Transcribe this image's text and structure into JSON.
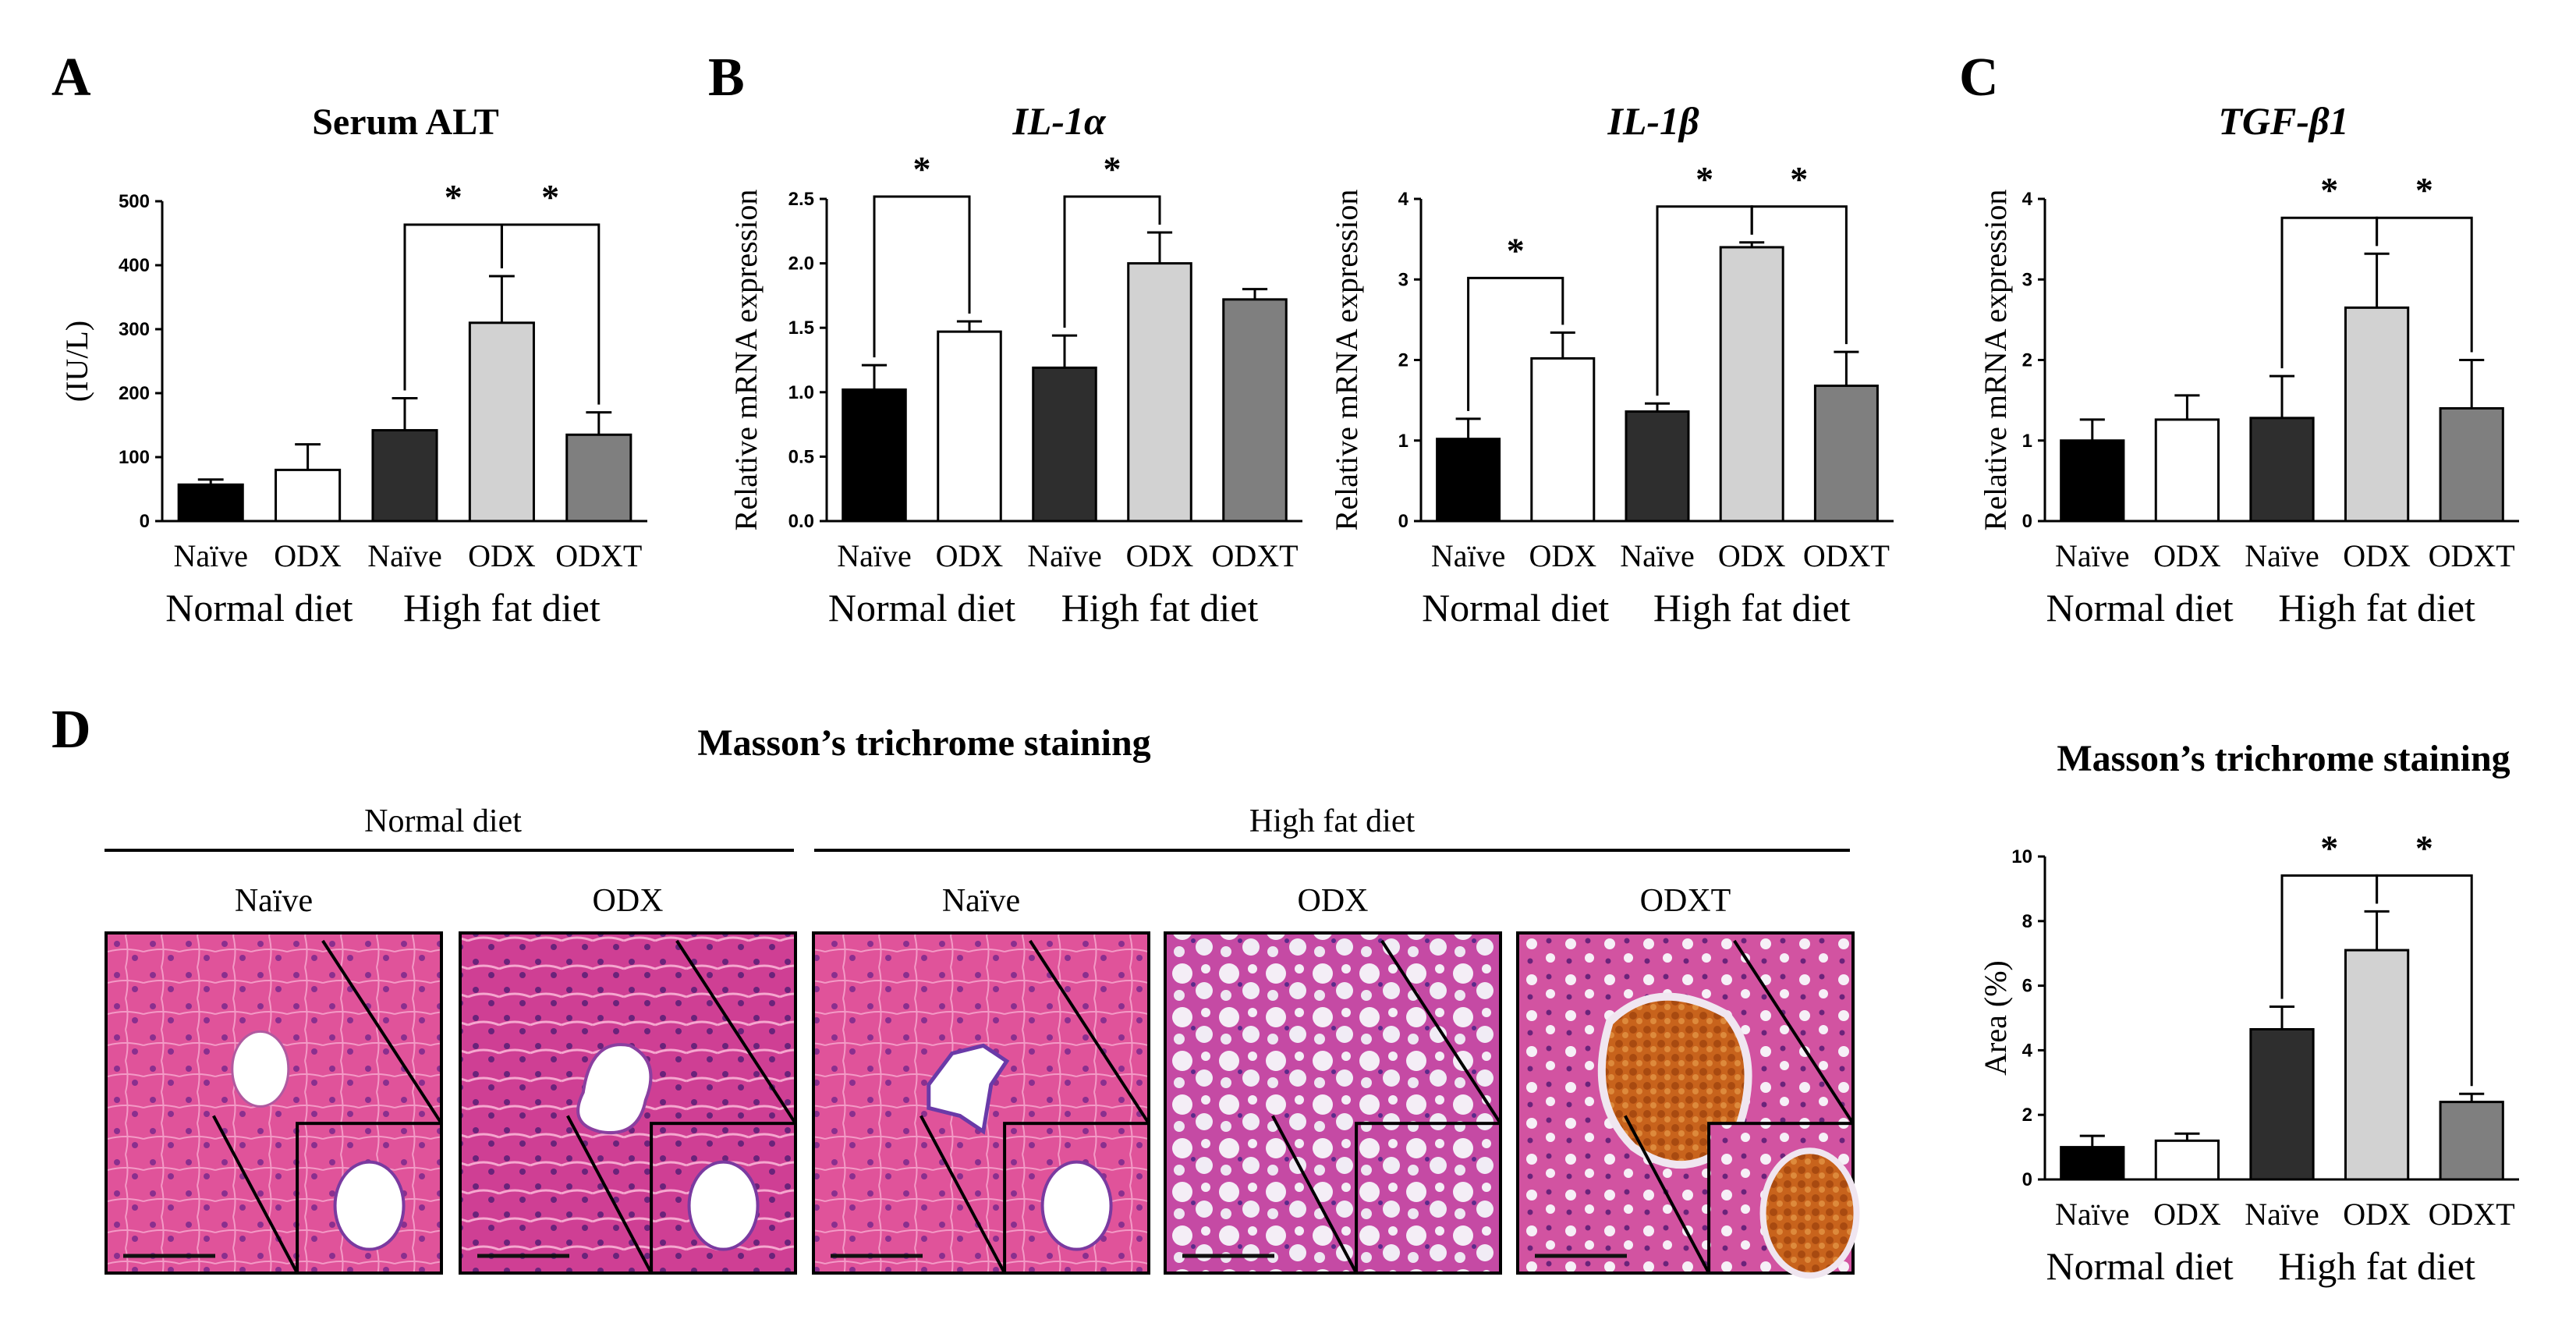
{
  "figure": {
    "panels": {
      "A": "A",
      "B": "B",
      "C": "C",
      "D": "D"
    },
    "d_title": "Masson’s trichrome staining",
    "d_groups": [
      "Normal diet",
      "High fat diet"
    ],
    "d_image_labels": [
      "Naïve",
      "ODX",
      "Naïve",
      "ODX",
      "ODXT"
    ],
    "group_labels": [
      "Normal diet",
      "High fat diet"
    ],
    "significance_marker": "*"
  },
  "colors": {
    "naive_normal": "#000000",
    "odx_normal": "#ffffff",
    "naive_hfd": "#2e2e2e",
    "odx_hfd": "#d2d2d2",
    "odxt_hfd": "#7f7f7f",
    "stain_pink": "#e0539a",
    "stain_purple": "#a044b0",
    "stain_orange": "#c8631c"
  },
  "chart_data": [
    {
      "id": "alt",
      "type": "bar",
      "title": "Serum ALT",
      "title_style": "bold",
      "ylabel": "(IU/L)",
      "ylim": [
        0,
        500
      ],
      "yticks": [
        "0",
        "100",
        "200",
        "300",
        "400",
        "500"
      ],
      "categories": [
        "Naïve",
        "ODX",
        "Naïve",
        "ODX",
        "ODXT"
      ],
      "groups": [
        "Normal diet",
        "High fat diet"
      ],
      "values": [
        57,
        80,
        142,
        310,
        135
      ],
      "errors": [
        8,
        40,
        50,
        73,
        35
      ],
      "significance": [
        {
          "from": 2,
          "to": 3,
          "label": "*"
        },
        {
          "from": 3,
          "to": 4,
          "label": "*"
        }
      ]
    },
    {
      "id": "il1a",
      "type": "bar",
      "title": "IL-1α",
      "title_style": "italic",
      "ylabel": "Relative  mRNA expression",
      "ylim": [
        0,
        2.5
      ],
      "yticks": [
        "0.0",
        "0.5",
        "1.0",
        "1.5",
        "2.0",
        "2.5"
      ],
      "categories": [
        "Naïve",
        "ODX",
        "Naïve",
        "ODX",
        "ODXT"
      ],
      "groups": [
        "Normal diet",
        "High fat diet"
      ],
      "values": [
        1.02,
        1.47,
        1.19,
        2.0,
        1.72
      ],
      "errors": [
        0.19,
        0.08,
        0.25,
        0.24,
        0.08
      ],
      "significance": [
        {
          "from": 0,
          "to": 1,
          "label": "*"
        },
        {
          "from": 2,
          "to": 3,
          "label": "*"
        }
      ]
    },
    {
      "id": "il1b",
      "type": "bar",
      "title": "IL-1β",
      "title_style": "italic",
      "ylabel": "Relative  mRNA expression",
      "ylim": [
        0,
        4
      ],
      "yticks": [
        "0",
        "1",
        "2",
        "3",
        "4"
      ],
      "categories": [
        "Naïve",
        "ODX",
        "Naïve",
        "ODX",
        "ODXT"
      ],
      "groups": [
        "Normal diet",
        "High fat diet"
      ],
      "values": [
        1.02,
        2.02,
        1.36,
        3.4,
        1.68
      ],
      "errors": [
        0.25,
        0.32,
        0.1,
        0.06,
        0.42
      ],
      "significance": [
        {
          "from": 0,
          "to": 1,
          "label": "*"
        },
        {
          "from": 2,
          "to": 3,
          "label": "*"
        },
        {
          "from": 3,
          "to": 4,
          "label": "*"
        }
      ]
    },
    {
      "id": "tgfb1",
      "type": "bar",
      "title": "TGF-β1",
      "title_style": "italic",
      "ylabel": "Relative  mRNA expression",
      "ylim": [
        0,
        4
      ],
      "yticks": [
        "0",
        "1",
        "2",
        "3",
        "4"
      ],
      "categories": [
        "Naïve",
        "ODX",
        "Naïve",
        "ODX",
        "ODXT"
      ],
      "groups": [
        "Normal diet",
        "High fat diet"
      ],
      "values": [
        1.0,
        1.26,
        1.28,
        2.65,
        1.4
      ],
      "errors": [
        0.26,
        0.3,
        0.52,
        0.67,
        0.6
      ],
      "significance": [
        {
          "from": 2,
          "to": 3,
          "label": "*"
        },
        {
          "from": 3,
          "to": 4,
          "label": "*"
        }
      ]
    },
    {
      "id": "masson",
      "type": "bar",
      "title": "Masson’s trichrome staining",
      "title_style": "bold",
      "ylabel": "Area  (%)",
      "ylim": [
        0,
        10
      ],
      "yticks": [
        "0",
        "2",
        "4",
        "6",
        "8",
        "10"
      ],
      "categories": [
        "Naïve",
        "ODX",
        "Naïve",
        "ODX",
        "ODXT"
      ],
      "groups": [
        "Normal diet",
        "High fat diet"
      ],
      "values": [
        1.0,
        1.2,
        4.65,
        7.1,
        2.4
      ],
      "errors": [
        0.35,
        0.22,
        0.7,
        1.2,
        0.25
      ],
      "significance": [
        {
          "from": 2,
          "to": 3,
          "label": "*"
        },
        {
          "from": 3,
          "to": 4,
          "label": "*"
        }
      ]
    }
  ]
}
